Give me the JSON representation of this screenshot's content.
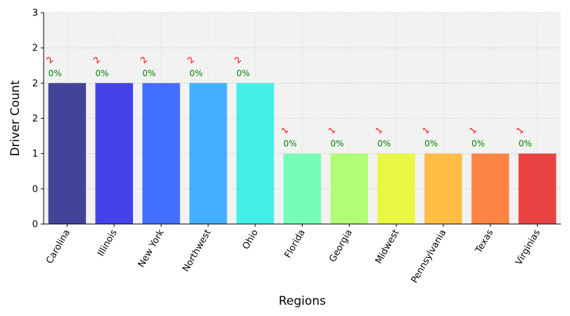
{
  "chart_data": {
    "type": "bar",
    "xlabel": "Regions",
    "ylabel": "Driver Count",
    "ylim": [
      0,
      3
    ],
    "y_tick_labels": [
      "0",
      "0",
      "1",
      "2",
      "2",
      "2",
      "3"
    ],
    "grid": true,
    "background": "#f2f2f2",
    "categories": [
      "Carolina",
      "Illinois",
      "New York",
      "Northwest",
      "Ohio",
      "Florida",
      "Georgia",
      "Midwest",
      "Pennsylvania",
      "Texas",
      "Virginias"
    ],
    "values": [
      2,
      2,
      2,
      2,
      2,
      1,
      1,
      1,
      1,
      1,
      1
    ],
    "value_labels": [
      "2",
      "2",
      "2",
      "2",
      "2",
      "1",
      "1",
      "1",
      "1",
      "1",
      "1"
    ],
    "percent_labels": [
      "0%",
      "0%",
      "0%",
      "0%",
      "0%",
      "0%",
      "0%",
      "0%",
      "0%",
      "0%",
      "0%"
    ],
    "colors": [
      "#30308f",
      "#3030e8",
      "#3060ff",
      "#30a8ff",
      "#30f0e8",
      "#68ffb0",
      "#a8ff68",
      "#e8f830",
      "#ffb830",
      "#ff7830",
      "#e83030"
    ],
    "value_label_color": "#ff0000",
    "percent_label_color": "#008000"
  }
}
